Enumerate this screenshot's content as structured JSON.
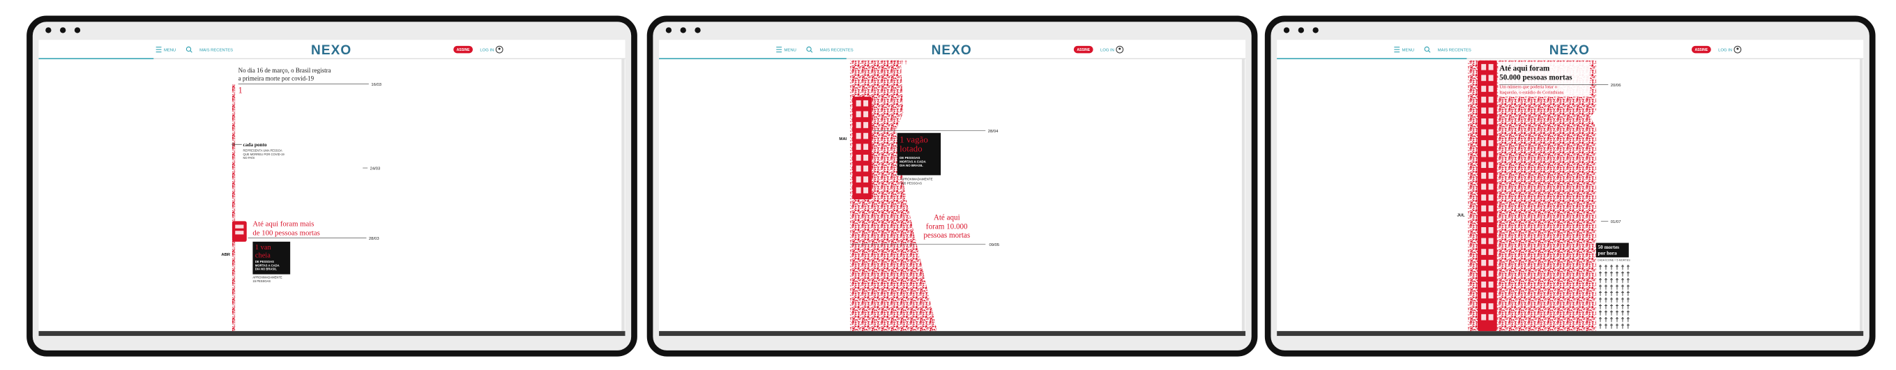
{
  "panels": [
    {
      "nav": {
        "menu": "MENU",
        "recent": "MAIS RECENTES",
        "logo": "NEXO",
        "subscribe": "ASSINE",
        "login": "LOG IN"
      },
      "content": {
        "headline": [
          "No dia 16 de março, o Brasil registra",
          "a primeira morte por covid-19"
        ],
        "date_1": "16/03",
        "count": "1",
        "legend_title": "cada ponto",
        "legend_text": [
          "REPRESENTA UMA PESSOA",
          "QUE MORREU POR COVID-19",
          "NO PAÍS"
        ],
        "date_2": "24/03",
        "milestone": [
          "Até aqui foram mais",
          "de 100 pessoas mortas"
        ],
        "date_3": "28/03",
        "month": "ABR",
        "box_title": [
          "1 van",
          "cheia"
        ],
        "box_text": [
          "DE PESSOAS",
          "MORTAS A CADA",
          "DIA NO BRASIL"
        ],
        "box_note": [
          "APROXIMADAMENTE",
          "15 PESSOAS"
        ]
      }
    },
    {
      "nav": {
        "menu": "MENU",
        "recent": "MAIS RECENTES",
        "logo": "NEXO",
        "subscribe": "ASSINE",
        "login": "LOG IN"
      },
      "content": {
        "month": "MAI",
        "date_1": "28/04",
        "box_title": [
          "1 vagão",
          "lotado"
        ],
        "box_text": [
          "DE PESSOAS",
          "MORTAS A CADA",
          "DIA NO BRASIL"
        ],
        "box_note": [
          "APROXIMADAMENTE",
          "345 PESSOAS"
        ],
        "milestone": [
          "Até aqui",
          "foram 10.000",
          "pessoas mortas"
        ],
        "date_2": "09/05"
      }
    },
    {
      "nav": {
        "menu": "MENU",
        "recent": "MAIS RECENTES",
        "logo": "NEXO",
        "subscribe": "ASSINE",
        "login": "LOG IN"
      },
      "content": {
        "milestone": [
          "Até aqui foram",
          "50.000 pessoas mortas"
        ],
        "comparison": [
          "Um número que poderia lotar o",
          "Itaquerão, o estádio do Corinthians"
        ],
        "date_1": "20/06",
        "month": "JUL",
        "date_2": "01/07",
        "rate_title": [
          "50 mortes",
          "por hora"
        ],
        "rate_note": "CADA ÍCONE = 5 MORTES"
      }
    }
  ]
}
